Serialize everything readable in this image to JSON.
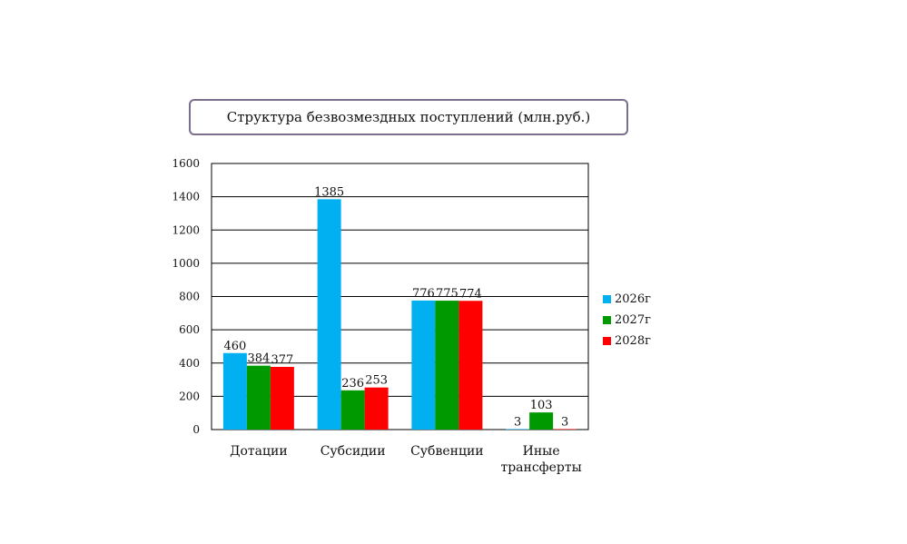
{
  "chart_data": {
    "type": "bar",
    "title": "Структура безвозмездных поступлений (млн.руб.)",
    "categories": [
      "Дотации",
      "Субсидии",
      "Субвенции",
      "Иные трансферты"
    ],
    "series": [
      {
        "name": "2026г",
        "color": "#00b0f0",
        "values": [
          460,
          1385,
          776,
          3
        ]
      },
      {
        "name": "2027г",
        "color": "#009900",
        "values": [
          384,
          236,
          775,
          103
        ]
      },
      {
        "name": "2028г",
        "color": "#ff0000",
        "values": [
          377,
          253,
          774,
          3
        ]
      }
    ],
    "ylim": [
      0,
      1600
    ],
    "yticks": [
      0,
      200,
      400,
      600,
      800,
      1000,
      1200,
      1400,
      1600
    ],
    "grid": true,
    "legend": "right"
  }
}
